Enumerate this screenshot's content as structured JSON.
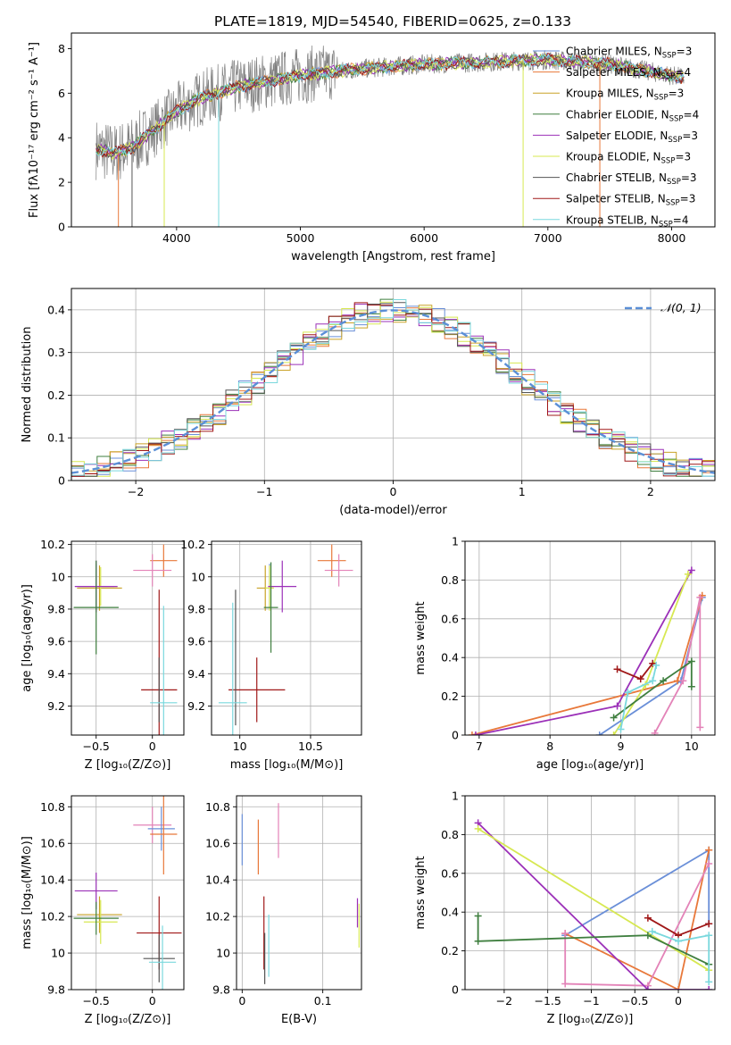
{
  "figure_title": "PLATE=1819, MJD=54540, FIBERID=0625, z=0.133",
  "colors": {
    "cm": "#6a8fd8",
    "sm": "#e8783a",
    "km": "#c9a227",
    "ce": "#3f7f3f",
    "se": "#9b30b8",
    "ke": "#d7e852",
    "cs": "#555555",
    "ss": "#a01818",
    "ks": "#7ad8dd",
    "gauss": "#5b8fd6",
    "pink": "#e383b8"
  },
  "legend_top": [
    {
      "k": "cm",
      "label": "Chabrier MILES, N",
      "sub": "SSP",
      "suf": "=3"
    },
    {
      "k": "sm",
      "label": "Salpeter MILES, N",
      "sub": "SSP",
      "suf": "=4"
    },
    {
      "k": "km",
      "label": "Kroupa MILES, N",
      "sub": "SSP",
      "suf": "=3"
    },
    {
      "k": "ce",
      "label": "Chabrier ELODIE, N",
      "sub": "SSP",
      "suf": "=4"
    },
    {
      "k": "se",
      "label": "Salpeter ELODIE, N",
      "sub": "SSP",
      "suf": "=3"
    },
    {
      "k": "ke",
      "label": "Kroupa ELODIE, N",
      "sub": "SSP",
      "suf": "=3"
    },
    {
      "k": "cs",
      "label": "Chabrier STELIB, N",
      "sub": "SSP",
      "suf": "=3"
    },
    {
      "k": "ss",
      "label": "Salpeter STELIB, N",
      "sub": "SSP",
      "suf": "=3"
    },
    {
      "k": "ks",
      "label": "Kroupa STELIB, N",
      "sub": "SSP",
      "suf": "=4"
    }
  ],
  "chart_data": [
    {
      "id": "spectrum",
      "type": "line",
      "xlabel": "wavelength [Angstrom, rest frame]",
      "ylabel": "Flux [fλ10⁻¹⁷ erg cm⁻² s⁻¹ A⁻¹]",
      "xlim": [
        3150,
        8350
      ],
      "ylim": [
        0,
        8.7
      ],
      "xticks": [
        4000,
        5000,
        6000,
        7000,
        8000
      ],
      "yticks": [
        0,
        2,
        4,
        6,
        8
      ],
      "continuum": [
        [
          3350,
          3.5
        ],
        [
          3500,
          3.3
        ],
        [
          3650,
          3.6
        ],
        [
          3800,
          4.3
        ],
        [
          4000,
          5.2
        ],
        [
          4200,
          5.8
        ],
        [
          4500,
          6.3
        ],
        [
          5000,
          6.8
        ],
        [
          5500,
          7.1
        ],
        [
          6000,
          7.3
        ],
        [
          6500,
          7.4
        ],
        [
          7000,
          7.5
        ],
        [
          7500,
          7.3
        ],
        [
          8000,
          6.8
        ],
        [
          8100,
          6.7
        ]
      ],
      "data_noise_until": 5300
    },
    {
      "id": "residuals",
      "type": "histogram",
      "xlabel": "(data-model)/error",
      "ylabel": "Normed distribution",
      "xlim": [
        -2.5,
        2.5
      ],
      "ylim": [
        0,
        0.45
      ],
      "xticks": [
        -2,
        -1,
        0,
        1,
        2
      ],
      "yticks": [
        0,
        0.1,
        0.2,
        0.3,
        0.4
      ],
      "bin_width": 0.1,
      "legend": "𝒩(0, 1)"
    },
    {
      "id": "age_vs_Z",
      "type": "errorbar",
      "xlabel": "Z [log₁₀(Z/Z⊙)]",
      "ylabel": "age  [log₁₀(age/yr)]",
      "xlim": [
        -0.72,
        0.28
      ],
      "ylim": [
        9.02,
        10.22
      ],
      "xticks": [
        -0.5,
        0.0
      ],
      "yticks": [
        9.2,
        9.4,
        9.6,
        9.8,
        10.0,
        10.2
      ],
      "points": [
        {
          "k": "cm",
          "x": -0.5,
          "xe": 0.16,
          "y": 9.94,
          "ye": 0.14
        },
        {
          "k": "km",
          "x": -0.47,
          "xe": 0.2,
          "y": 9.93,
          "ye": 0.14
        },
        {
          "k": "ke",
          "x": -0.46,
          "xe": 0.15,
          "y": 9.94,
          "ye": 0.12
        },
        {
          "k": "se",
          "x": -0.5,
          "xe": 0.19,
          "y": 9.94,
          "ye": 0.16
        },
        {
          "k": "ce",
          "x": -0.5,
          "xe": 0.2,
          "y": 9.81,
          "ye": 0.29
        },
        {
          "k": "sm",
          "x": 0.1,
          "xe": 0.12,
          "y": 10.1,
          "ye": 0.1
        },
        {
          "k": "pink",
          "x": 0.0,
          "xe": 0.17,
          "y": 10.04,
          "ye": 0.1
        },
        {
          "k": "ss",
          "x": 0.06,
          "xe": 0.16,
          "y": 9.3,
          "ye": 0.62
        },
        {
          "k": "cs",
          "x": 0.06,
          "xe": 0.0,
          "y": 9.3,
          "ye": 0.2
        },
        {
          "k": "ks",
          "x": 0.1,
          "xe": 0.12,
          "y": 9.22,
          "ye": 0.6
        }
      ]
    },
    {
      "id": "age_vs_mass",
      "type": "errorbar",
      "xlabel": "mass [log₁₀(M/M⊙)]",
      "ylabel": "",
      "xlim": [
        9.8,
        10.86
      ],
      "ylim": [
        9.02,
        10.22
      ],
      "xticks": [
        10.0,
        10.5
      ],
      "yticks": [
        9.2,
        9.4,
        9.6,
        9.8,
        10.0,
        10.2
      ],
      "points": [
        {
          "k": "cm",
          "x": 10.21,
          "xe": 0.0,
          "y": 9.94,
          "ye": 0.14
        },
        {
          "k": "km",
          "x": 10.18,
          "xe": 0.06,
          "y": 9.93,
          "ye": 0.14
        },
        {
          "k": "ke",
          "x": 10.21,
          "xe": 0.03,
          "y": 9.93,
          "ye": 0.14
        },
        {
          "k": "se",
          "x": 10.3,
          "xe": 0.1,
          "y": 9.94,
          "ye": 0.16
        },
        {
          "k": "ce",
          "x": 10.22,
          "xe": 0.05,
          "y": 9.81,
          "ye": 0.28
        },
        {
          "k": "sm",
          "x": 10.65,
          "xe": 0.1,
          "y": 10.1,
          "ye": 0.1
        },
        {
          "k": "pink",
          "x": 10.7,
          "xe": 0.1,
          "y": 10.04,
          "ye": 0.1
        },
        {
          "k": "ss",
          "x": 10.12,
          "xe": 0.2,
          "y": 9.3,
          "ye": 0.2
        },
        {
          "k": "cs",
          "x": 9.97,
          "xe": 0.0,
          "y": 9.5,
          "ye": 0.42
        },
        {
          "k": "ks",
          "x": 9.95,
          "xe": 0.1,
          "y": 9.22,
          "ye": 0.62
        }
      ]
    },
    {
      "id": "weight_vs_age",
      "type": "line",
      "xlabel": "age  [log₁₀(age/yr)]",
      "ylabel": "mass weight",
      "xlim": [
        6.8,
        10.33
      ],
      "ylim": [
        0,
        1
      ],
      "xticks": [
        7,
        8,
        9,
        10
      ],
      "yticks": [
        0,
        0.2,
        0.4,
        0.6,
        0.8,
        1.0
      ],
      "series": [
        {
          "k": "cm",
          "pts": [
            [
              8.7,
              0.0
            ],
            [
              9.85,
              0.28
            ],
            [
              10.15,
              0.71
            ]
          ]
        },
        {
          "k": "sm",
          "pts": [
            [
              6.9,
              0.0
            ],
            [
              9.8,
              0.28
            ],
            [
              10.15,
              0.72
            ]
          ]
        },
        {
          "k": "pink",
          "pts": [
            [
              9.48,
              0.01
            ],
            [
              9.88,
              0.28
            ],
            [
              10.12,
              0.71
            ],
            [
              10.12,
              0.04
            ]
          ]
        },
        {
          "k": "se",
          "pts": [
            [
              6.95,
              0.0
            ],
            [
              8.95,
              0.15
            ],
            [
              10.0,
              0.85
            ]
          ]
        },
        {
          "k": "ke",
          "pts": [
            [
              8.9,
              0.0
            ],
            [
              9.35,
              0.26
            ],
            [
              9.95,
              0.83
            ]
          ]
        },
        {
          "k": "ce",
          "pts": [
            [
              8.9,
              0.09
            ],
            [
              9.6,
              0.28
            ],
            [
              10.0,
              0.38
            ],
            [
              10.0,
              0.25
            ]
          ]
        },
        {
          "k": "ss",
          "pts": [
            [
              8.95,
              0.34
            ],
            [
              9.28,
              0.29
            ],
            [
              9.45,
              0.37
            ]
          ]
        },
        {
          "k": "ks",
          "pts": [
            [
              9.0,
              0.03
            ],
            [
              9.1,
              0.22
            ],
            [
              9.45,
              0.28
            ],
            [
              9.5,
              0.36
            ]
          ]
        }
      ]
    },
    {
      "id": "mass_vs_Z",
      "type": "errorbar",
      "xlabel": "Z [log₁₀(Z/Z⊙)]",
      "ylabel": "mass [log₁₀(M/M⊙)]",
      "xlim": [
        -0.72,
        0.28
      ],
      "ylim": [
        9.8,
        10.86
      ],
      "xticks": [
        -0.5,
        0.0
      ],
      "yticks": [
        9.8,
        10.0,
        10.2,
        10.4,
        10.6,
        10.8
      ],
      "points": [
        {
          "k": "se",
          "x": -0.5,
          "xe": 0.19,
          "y": 10.34,
          "ye": 0.1
        },
        {
          "k": "km",
          "x": -0.47,
          "xe": 0.2,
          "y": 10.21,
          "ye": 0.1
        },
        {
          "k": "ke",
          "x": -0.46,
          "xe": 0.15,
          "y": 10.17,
          "ye": 0.12
        },
        {
          "k": "ce",
          "x": -0.5,
          "xe": 0.2,
          "y": 10.19,
          "ye": 0.09
        },
        {
          "k": "pink",
          "x": 0.0,
          "xe": 0.17,
          "y": 10.7,
          "ye": 0.1
        },
        {
          "k": "cm",
          "x": 0.08,
          "xe": 0.12,
          "y": 10.68,
          "ye": 0.12
        },
        {
          "k": "sm",
          "x": 0.1,
          "xe": 0.12,
          "y": 10.65,
          "ye": 0.22
        },
        {
          "k": "ss",
          "x": 0.06,
          "xe": 0.2,
          "y": 10.11,
          "ye": 0.2
        },
        {
          "k": "cs",
          "x": 0.06,
          "xe": 0.14,
          "y": 9.97,
          "ye": 0.13
        },
        {
          "k": "ks",
          "x": 0.09,
          "xe": 0.12,
          "y": 9.95,
          "ye": 0.2
        }
      ]
    },
    {
      "id": "mass_vs_ebv",
      "type": "errorbar",
      "xlabel": "E(B-V)",
      "ylabel": "",
      "xlim": [
        -0.007,
        0.148
      ],
      "ylim": [
        9.8,
        10.86
      ],
      "xticks": [
        0.0,
        0.1
      ],
      "yticks": [
        9.8,
        10.0,
        10.2,
        10.4,
        10.6,
        10.8
      ],
      "points": [
        {
          "k": "cm",
          "x": 0.0,
          "xe": 0,
          "y": 10.62,
          "ye": 0.14
        },
        {
          "k": "sm",
          "x": 0.02,
          "xe": 0,
          "y": 10.58,
          "ye": 0.15
        },
        {
          "k": "pink",
          "x": 0.045,
          "xe": 0,
          "y": 10.67,
          "ye": 0.15
        },
        {
          "k": "ss",
          "x": 0.027,
          "xe": 0,
          "y": 10.11,
          "ye": 0.2
        },
        {
          "k": "cs",
          "x": 0.028,
          "xe": 0,
          "y": 9.97,
          "ye": 0.14
        },
        {
          "k": "ks",
          "x": 0.033,
          "xe": 0,
          "y": 10.04,
          "ye": 0.17
        },
        {
          "k": "se",
          "x": 0.143,
          "xe": 0,
          "y": 10.22,
          "ye": 0.08
        },
        {
          "k": "ke",
          "x": 0.145,
          "xe": 0,
          "y": 10.15,
          "ye": 0.12
        }
      ]
    },
    {
      "id": "weight_vs_Z",
      "type": "line",
      "xlabel": "Z [log₁₀(Z/Z⊙)]",
      "ylabel": "mass weight",
      "xlim": [
        -2.45,
        0.42
      ],
      "ylim": [
        0,
        1
      ],
      "xticks": [
        -2.0,
        -1.5,
        -1.0,
        -0.5,
        0.0
      ],
      "yticks": [
        0,
        0.2,
        0.4,
        0.6,
        0.8,
        1.0
      ],
      "series": [
        {
          "k": "cm",
          "pts": [
            [
              -1.3,
              0.28
            ],
            [
              0.35,
              0.72
            ],
            [
              0.35,
              0.34
            ]
          ]
        },
        {
          "k": "sm",
          "pts": [
            [
              -1.3,
              0.29
            ],
            [
              0.0,
              0.0
            ],
            [
              0.35,
              0.72
            ]
          ]
        },
        {
          "k": "pink",
          "pts": [
            [
              -1.3,
              0.29
            ],
            [
              -1.3,
              0.03
            ],
            [
              -0.35,
              0.02
            ],
            [
              0.35,
              0.65
            ]
          ]
        },
        {
          "k": "se",
          "pts": [
            [
              -2.3,
              0.86
            ],
            [
              -0.35,
              0.0
            ],
            [
              0.35,
              0.0
            ]
          ]
        },
        {
          "k": "ke",
          "pts": [
            [
              -2.3,
              0.83
            ],
            [
              0.35,
              0.1
            ]
          ]
        },
        {
          "k": "ce",
          "pts": [
            [
              -2.3,
              0.38
            ],
            [
              -2.3,
              0.25
            ],
            [
              -0.35,
              0.28
            ],
            [
              0.35,
              0.13
            ]
          ]
        },
        {
          "k": "ss",
          "pts": [
            [
              -0.35,
              0.37
            ],
            [
              0.0,
              0.28
            ],
            [
              0.35,
              0.34
            ]
          ]
        },
        {
          "k": "ks",
          "pts": [
            [
              0.35,
              0.04
            ],
            [
              0.35,
              0.28
            ],
            [
              0.0,
              0.25
            ],
            [
              -0.3,
              0.3
            ]
          ]
        }
      ]
    }
  ]
}
